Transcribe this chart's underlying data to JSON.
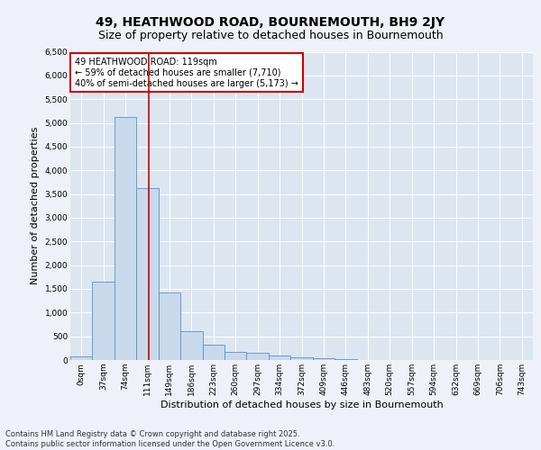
{
  "title_line1": "49, HEATHWOOD ROAD, BOURNEMOUTH, BH9 2JY",
  "title_line2": "Size of property relative to detached houses in Bournemouth",
  "xlabel": "Distribution of detached houses by size in Bournemouth",
  "ylabel": "Number of detached properties",
  "bar_color": "#c9d9ec",
  "bar_edge_color": "#5b8fc9",
  "categories": [
    "0sqm",
    "37sqm",
    "74sqm",
    "111sqm",
    "149sqm",
    "186sqm",
    "223sqm",
    "260sqm",
    "297sqm",
    "334sqm",
    "372sqm",
    "409sqm",
    "446sqm",
    "483sqm",
    "520sqm",
    "557sqm",
    "594sqm",
    "632sqm",
    "669sqm",
    "706sqm",
    "743sqm"
  ],
  "values": [
    70,
    1650,
    5120,
    3620,
    1430,
    610,
    330,
    175,
    145,
    95,
    55,
    35,
    20,
    0,
    0,
    0,
    0,
    0,
    0,
    0,
    0
  ],
  "vline_x": 3.08,
  "vline_color": "#cc0000",
  "annotation_text": "49 HEATHWOOD ROAD: 119sqm\n← 59% of detached houses are smaller (7,710)\n40% of semi-detached houses are larger (5,173) →",
  "annotation_box_color": "#cc0000",
  "ylim": [
    0,
    6500
  ],
  "yticks": [
    0,
    500,
    1000,
    1500,
    2000,
    2500,
    3000,
    3500,
    4000,
    4500,
    5000,
    5500,
    6000,
    6500
  ],
  "grid_color": "#ffffff",
  "bg_color": "#dce6f1",
  "fig_bg_color": "#eef2f8",
  "footer_line1": "Contains HM Land Registry data © Crown copyright and database right 2025.",
  "footer_line2": "Contains public sector information licensed under the Open Government Licence v3.0.",
  "title_fontsize": 10,
  "subtitle_fontsize": 9,
  "tick_fontsize": 6.5,
  "ylabel_fontsize": 8,
  "xlabel_fontsize": 8,
  "annotation_fontsize": 7,
  "footer_fontsize": 6
}
